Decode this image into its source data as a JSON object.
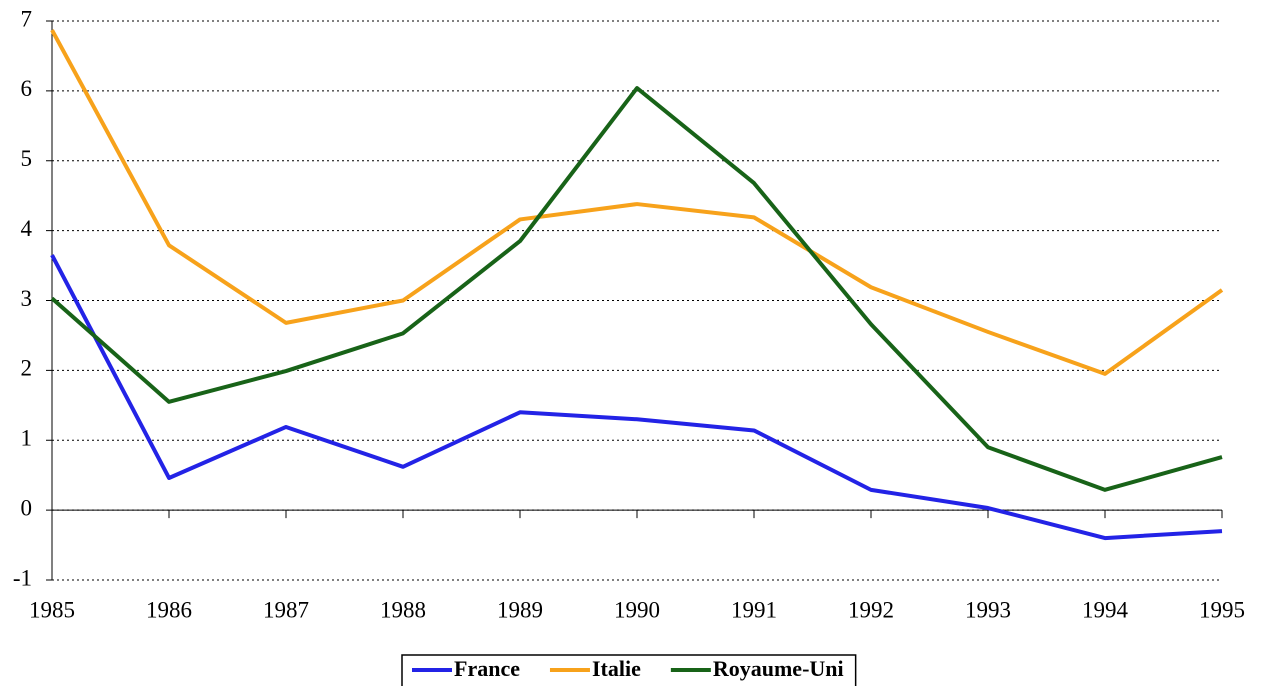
{
  "chart_data": {
    "type": "line",
    "x": [
      1985,
      1986,
      1987,
      1988,
      1989,
      1990,
      1991,
      1992,
      1993,
      1994,
      1995
    ],
    "xlim": [
      1985,
      1995
    ],
    "xticks": [
      1985,
      1986,
      1987,
      1988,
      1989,
      1990,
      1991,
      1992,
      1993,
      1994,
      1995
    ],
    "ylim": [
      -1,
      7
    ],
    "yticks": [
      -1,
      0,
      1,
      2,
      3,
      4,
      5,
      6,
      7
    ],
    "grid": true,
    "legend": "bottom",
    "series": [
      {
        "name": "France",
        "color": "#2323e6",
        "values": [
          3.65,
          0.46,
          1.19,
          0.62,
          1.4,
          1.3,
          1.14,
          0.29,
          0.03,
          -0.4,
          -0.3
        ]
      },
      {
        "name": "Italie",
        "color": "#f7a21b",
        "values": [
          6.87,
          3.79,
          2.68,
          3.0,
          4.16,
          4.38,
          4.19,
          3.19,
          2.55,
          1.95,
          3.15
        ]
      },
      {
        "name": "Royaume-Uni",
        "color": "#186318",
        "values": [
          3.03,
          1.55,
          1.99,
          2.53,
          3.85,
          6.04,
          4.68,
          2.66,
          0.9,
          0.29,
          0.76
        ]
      }
    ]
  }
}
